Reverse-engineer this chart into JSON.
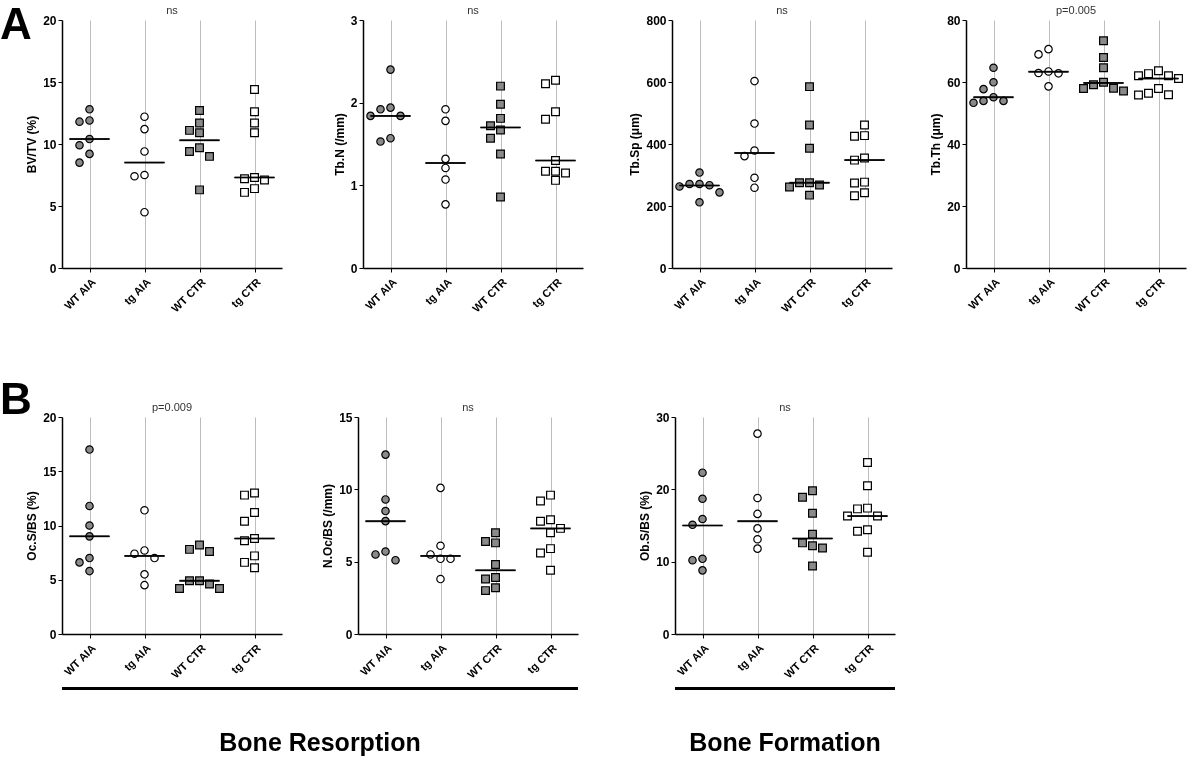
{
  "chart_data": [
    {
      "type": "scatter",
      "title": "A",
      "ylabel": "BV/TV (%)",
      "categories": [
        "WT AIA",
        "tg AIA",
        "WT CTR",
        "tg CTR"
      ],
      "ylim": [
        0,
        20
      ],
      "yticks": [
        0,
        5,
        10,
        15,
        20
      ],
      "grid": "x",
      "annotations": [
        "ns"
      ],
      "series": [
        {
          "color": "#8a8a8a",
          "marker": "circle",
          "x": [
            "WT AIA",
            "WT AIA",
            "WT AIA",
            "WT AIA",
            "WT AIA",
            "WT AIA",
            "WT AIA"
          ],
          "values": [
            12.8,
            11.8,
            11.9,
            10.4,
            9.9,
            9.2,
            8.5
          ]
        },
        {
          "color": "#ffffff",
          "marker": "circle",
          "x": [
            "tg AIA",
            "tg AIA",
            "tg AIA",
            "tg AIA",
            "tg AIA",
            "tg AIA"
          ],
          "values": [
            12.2,
            11.2,
            9.4,
            7.5,
            7.4,
            4.5
          ]
        },
        {
          "color": "#8a8a8a",
          "marker": "square",
          "x": [
            "WT CTR",
            "WT CTR",
            "WT CTR",
            "WT CTR",
            "WT CTR",
            "WT CTR",
            "WT CTR",
            "WT CTR"
          ],
          "values": [
            12.7,
            11.7,
            11.1,
            10.9,
            9.7,
            9.4,
            9.0,
            6.3
          ]
        },
        {
          "color": "#ffffff",
          "marker": "square",
          "x": [
            "tg CTR",
            "tg CTR",
            "tg CTR",
            "tg CTR",
            "tg CTR",
            "tg CTR",
            "tg CTR",
            "tg CTR",
            "tg CTR"
          ],
          "values": [
            14.4,
            12.6,
            11.7,
            10.9,
            7.3,
            7.2,
            7.1,
            6.4,
            6.1
          ]
        },
        {
          "type": "box",
          "color": "#000000",
          "boxes": [
            {
              "low": 10.4,
              "q1": 10.4,
              "median": 10.4,
              "q3": 10.4,
              "high": 10.4
            },
            {
              "low": 8.5,
              "q1": 8.5,
              "median": 8.5,
              "q3": 8.5,
              "high": 8.5
            },
            {
              "low": 10.3,
              "q1": 10.3,
              "median": 10.3,
              "q3": 10.3,
              "high": 10.3
            },
            {
              "low": 7.3,
              "q1": 7.3,
              "median": 7.3,
              "q3": 7.3,
              "high": 7.3
            }
          ]
        }
      ]
    },
    {
      "type": "scatter",
      "ylabel": "Tb.N (/mm)",
      "categories": [
        "WT AIA",
        "tg AIA",
        "WT CTR",
        "tg CTR"
      ],
      "ylim": [
        0,
        3
      ],
      "yticks": [
        0,
        1,
        2,
        3
      ],
      "grid": "x",
      "annotations": [
        "ns"
      ],
      "series": [
        {
          "color": "#8a8a8a",
          "marker": "circle",
          "x": [
            "WT AIA",
            "WT AIA",
            "WT AIA",
            "WT AIA",
            "WT AIA",
            "WT AIA",
            "WT AIA"
          ],
          "values": [
            2.4,
            1.92,
            1.94,
            1.84,
            1.84,
            1.57,
            1.53
          ]
        },
        {
          "color": "#ffffff",
          "marker": "circle",
          "x": [
            "tg AIA",
            "tg AIA",
            "tg AIA",
            "tg AIA",
            "tg AIA",
            "tg AIA"
          ],
          "values": [
            1.92,
            1.78,
            1.32,
            1.21,
            1.07,
            0.77
          ]
        },
        {
          "color": "#8a8a8a",
          "marker": "square",
          "x": [
            "WT CTR",
            "WT CTR",
            "WT CTR",
            "WT CTR",
            "WT CTR",
            "WT CTR",
            "WT CTR",
            "WT CTR"
          ],
          "values": [
            2.2,
            1.98,
            1.81,
            1.72,
            1.67,
            1.57,
            1.38,
            0.86
          ]
        },
        {
          "color": "#ffffff",
          "marker": "square",
          "x": [
            "tg CTR",
            "tg CTR",
            "tg CTR",
            "tg CTR",
            "tg CTR",
            "tg CTR",
            "tg CTR",
            "tg CTR",
            "tg CTR"
          ],
          "values": [
            2.27,
            2.23,
            1.89,
            1.8,
            1.3,
            1.17,
            1.17,
            1.15,
            1.06
          ]
        },
        {
          "type": "box",
          "color": "#000000",
          "boxes": [
            {
              "low": 1.84,
              "q1": 1.84,
              "median": 1.84,
              "q3": 1.84,
              "high": 1.84
            },
            {
              "low": 1.27,
              "q1": 1.27,
              "median": 1.27,
              "q3": 1.27,
              "high": 1.27
            },
            {
              "low": 1.7,
              "q1": 1.7,
              "median": 1.7,
              "q3": 1.7,
              "high": 1.7
            },
            {
              "low": 1.3,
              "q1": 1.3,
              "median": 1.3,
              "q3": 1.3,
              "high": 1.3
            }
          ]
        }
      ]
    },
    {
      "type": "scatter",
      "ylabel": "Tb.Sp (μm)",
      "categories": [
        "WT AIA",
        "tg AIA",
        "WT CTR",
        "tg CTR"
      ],
      "ylim": [
        0,
        800
      ],
      "yticks": [
        0,
        200,
        400,
        600,
        800
      ],
      "grid": "x",
      "annotations": [
        "ns"
      ],
      "series": [
        {
          "color": "#8a8a8a",
          "marker": "circle",
          "x": [
            "WT AIA",
            "WT AIA",
            "WT AIA",
            "WT AIA",
            "WT AIA",
            "WT AIA",
            "WT AIA"
          ],
          "values": [
            308,
            271,
            271,
            267,
            263,
            244,
            212
          ]
        },
        {
          "color": "#ffffff",
          "marker": "circle",
          "x": [
            "tg AIA",
            "tg AIA",
            "tg AIA",
            "tg AIA",
            "tg AIA",
            "tg AIA"
          ],
          "values": [
            603,
            466,
            379,
            361,
            291,
            259
          ]
        },
        {
          "color": "#8a8a8a",
          "marker": "square",
          "x": [
            "WT CTR",
            "WT CTR",
            "WT CTR",
            "WT CTR",
            "WT CTR",
            "WT CTR",
            "WT CTR",
            "WT CTR"
          ],
          "values": [
            585,
            461,
            386,
            275,
            275,
            268,
            261,
            235
          ]
        },
        {
          "color": "#ffffff",
          "marker": "square",
          "x": [
            "tg CTR",
            "tg CTR",
            "tg CTR",
            "tg CTR",
            "tg CTR",
            "tg CTR",
            "tg CTR",
            "tg CTR",
            "tg CTR"
          ],
          "values": [
            461,
            427,
            425,
            355,
            348,
            277,
            274,
            243,
            233
          ]
        },
        {
          "type": "box",
          "color": "#000000",
          "boxes": [
            {
              "low": 266,
              "q1": 266,
              "median": 266,
              "q3": 266,
              "high": 266
            },
            {
              "low": 371,
              "q1": 371,
              "median": 371,
              "q3": 371,
              "high": 371
            },
            {
              "low": 275,
              "q1": 275,
              "median": 275,
              "q3": 275,
              "high": 275
            },
            {
              "low": 348,
              "q1": 348,
              "median": 348,
              "q3": 348,
              "high": 348
            }
          ]
        }
      ]
    },
    {
      "type": "scatter",
      "ylabel": "Tb.Th (μm)",
      "categories": [
        "WT AIA",
        "tg AIA",
        "WT CTR",
        "tg CTR"
      ],
      "ylim": [
        0,
        80
      ],
      "yticks": [
        0,
        20,
        40,
        60,
        80
      ],
      "grid": "x",
      "annotations": [
        "p=0.005"
      ],
      "series": [
        {
          "color": "#8a8a8a",
          "marker": "circle",
          "x": [
            "WT AIA",
            "WT AIA",
            "WT AIA",
            "WT AIA",
            "WT AIA",
            "WT AIA",
            "WT AIA"
          ],
          "values": [
            64.6,
            59.9,
            57.7,
            55.1,
            53.9,
            53.9,
            53.3
          ]
        },
        {
          "color": "#ffffff",
          "marker": "circle",
          "x": [
            "tg AIA",
            "tg AIA",
            "tg AIA",
            "tg AIA",
            "tg AIA",
            "tg AIA"
          ],
          "values": [
            70.6,
            68.9,
            63.4,
            62.9,
            62.8,
            58.6
          ]
        },
        {
          "color": "#8a8a8a",
          "marker": "square",
          "x": [
            "WT CTR",
            "WT CTR",
            "WT CTR",
            "WT CTR",
            "WT CTR",
            "WT CTR",
            "WT CTR",
            "WT CTR"
          ],
          "values": [
            73.3,
            67.9,
            64.6,
            59.9,
            59.1,
            58.0,
            57.9,
            57.1
          ]
        },
        {
          "color": "#ffffff",
          "marker": "square",
          "x": [
            "tg CTR",
            "tg CTR",
            "tg CTR",
            "tg CTR",
            "tg CTR",
            "tg CTR",
            "tg CTR",
            "tg CTR",
            "tg CTR"
          ],
          "values": [
            63.6,
            62.7,
            62.0,
            62.0,
            61.1,
            57.9,
            56.4,
            55.9,
            55.8
          ]
        },
        {
          "type": "box",
          "color": "#000000",
          "boxes": [
            {
              "low": 55.1,
              "q1": 55.1,
              "median": 55.1,
              "q3": 55.1,
              "high": 55.1
            },
            {
              "low": 63.3,
              "q1": 63.3,
              "median": 63.3,
              "q3": 63.3,
              "high": 63.3
            },
            {
              "low": 59.7,
              "q1": 59.7,
              "median": 59.7,
              "q3": 59.7,
              "high": 59.7
            },
            {
              "low": 61.1,
              "q1": 61.1,
              "median": 61.1,
              "q3": 61.1,
              "high": 61.1
            }
          ]
        }
      ]
    },
    {
      "type": "scatter",
      "title": "B",
      "ylabel": "Oc.S/BS (%)",
      "categories": [
        "WT AIA",
        "tg AIA",
        "WT CTR",
        "tg CTR"
      ],
      "ylim": [
        0,
        20
      ],
      "yticks": [
        0,
        5,
        10,
        15,
        20
      ],
      "grid": "x",
      "annotations": [
        "p=0.009",
        "Bone Resorption"
      ],
      "series": [
        {
          "color": "#8a8a8a",
          "marker": "circle",
          "x": [
            "WT AIA",
            "WT AIA",
            "WT AIA",
            "WT AIA",
            "WT AIA",
            "WT AIA",
            "WT AIA"
          ],
          "values": [
            17.0,
            11.8,
            10.0,
            9.0,
            7.0,
            6.6,
            5.8
          ]
        },
        {
          "color": "#ffffff",
          "marker": "circle",
          "x": [
            "tg AIA",
            "tg AIA",
            "tg AIA",
            "tg AIA",
            "tg AIA",
            "tg AIA"
          ],
          "values": [
            11.4,
            7.7,
            7.4,
            7.0,
            5.5,
            4.5
          ]
        },
        {
          "color": "#8a8a8a",
          "marker": "square",
          "x": [
            "WT CTR",
            "WT CTR",
            "WT CTR",
            "WT CTR",
            "WT CTR",
            "WT CTR",
            "WT CTR",
            "WT CTR"
          ],
          "values": [
            8.2,
            7.8,
            7.6,
            4.9,
            4.9,
            4.6,
            4.2,
            4.2
          ]
        },
        {
          "color": "#ffffff",
          "marker": "square",
          "x": [
            "tg CTR",
            "tg CTR",
            "tg CTR",
            "tg CTR",
            "tg CTR",
            "tg CTR",
            "tg CTR",
            "tg CTR",
            "tg CTR"
          ],
          "values": [
            13.0,
            12.8,
            11.2,
            10.4,
            8.8,
            8.6,
            7.2,
            6.6,
            6.1
          ]
        },
        {
          "type": "box",
          "color": "#000000",
          "boxes": [
            {
              "low": 9.0,
              "q1": 9.0,
              "median": 9.0,
              "q3": 9.0,
              "high": 9.0
            },
            {
              "low": 7.2,
              "q1": 7.2,
              "median": 7.2,
              "q3": 7.2,
              "high": 7.2
            },
            {
              "low": 4.9,
              "q1": 4.9,
              "median": 4.9,
              "q3": 4.9,
              "high": 4.9
            },
            {
              "low": 8.8,
              "q1": 8.8,
              "median": 8.8,
              "q3": 8.8,
              "high": 8.8
            }
          ]
        }
      ]
    },
    {
      "type": "scatter",
      "ylabel": "N.Oc/BS (/mm)",
      "categories": [
        "WT AIA",
        "tg AIA",
        "WT CTR",
        "tg CTR"
      ],
      "ylim": [
        0,
        15
      ],
      "yticks": [
        0,
        5,
        10,
        15
      ],
      "grid": "x",
      "annotations": [
        "ns"
      ],
      "series": [
        {
          "color": "#8a8a8a",
          "marker": "circle",
          "x": [
            "WT AIA",
            "WT AIA",
            "WT AIA",
            "WT AIA",
            "WT AIA",
            "WT AIA",
            "WT AIA"
          ],
          "values": [
            12.4,
            9.3,
            8.5,
            7.8,
            5.7,
            5.5,
            5.1
          ]
        },
        {
          "color": "#ffffff",
          "marker": "circle",
          "x": [
            "tg AIA",
            "tg AIA",
            "tg AIA",
            "tg AIA",
            "tg AIA",
            "tg AIA"
          ],
          "values": [
            10.1,
            6.1,
            5.5,
            5.2,
            5.2,
            3.8
          ]
        },
        {
          "color": "#8a8a8a",
          "marker": "square",
          "x": [
            "WT CTR",
            "WT CTR",
            "WT CTR",
            "WT CTR",
            "WT CTR",
            "WT CTR",
            "WT CTR",
            "WT CTR"
          ],
          "values": [
            7.0,
            6.4,
            6.3,
            4.8,
            3.9,
            3.8,
            3.2,
            3.0
          ]
        },
        {
          "color": "#ffffff",
          "marker": "square",
          "x": [
            "tg CTR",
            "tg CTR",
            "tg CTR",
            "tg CTR",
            "tg CTR",
            "tg CTR",
            "tg CTR",
            "tg CTR",
            "tg CTR"
          ],
          "values": [
            9.6,
            9.2,
            7.9,
            7.8,
            7.3,
            7.0,
            5.9,
            5.6,
            4.4
          ]
        },
        {
          "type": "box",
          "color": "#000000",
          "boxes": [
            {
              "low": 7.8,
              "q1": 7.8,
              "median": 7.8,
              "q3": 7.8,
              "high": 7.8
            },
            {
              "low": 5.4,
              "q1": 5.4,
              "median": 5.4,
              "q3": 5.4,
              "high": 5.4
            },
            {
              "low": 4.4,
              "q1": 4.4,
              "median": 4.4,
              "q3": 4.4,
              "high": 4.4
            },
            {
              "low": 7.3,
              "q1": 7.3,
              "median": 7.3,
              "q3": 7.3,
              "high": 7.3
            }
          ]
        }
      ]
    },
    {
      "type": "scatter",
      "ylabel": "Ob.S/BS (%)",
      "categories": [
        "WT AIA",
        "tg AIA",
        "WT CTR",
        "tg CTR"
      ],
      "ylim": [
        0,
        30
      ],
      "yticks": [
        0,
        10,
        20,
        30
      ],
      "grid": "x",
      "annotations": [
        "ns",
        "Bone Formation"
      ],
      "series": [
        {
          "color": "#8a8a8a",
          "marker": "circle",
          "x": [
            "WT AIA",
            "WT AIA",
            "WT AIA",
            "WT AIA",
            "WT AIA",
            "WT AIA",
            "WT AIA"
          ],
          "values": [
            22.3,
            18.7,
            15.9,
            15.1,
            10.4,
            10.2,
            8.8
          ]
        },
        {
          "color": "#ffffff",
          "marker": "circle",
          "x": [
            "tg AIA",
            "tg AIA",
            "tg AIA",
            "tg AIA",
            "tg AIA",
            "tg AIA"
          ],
          "values": [
            27.7,
            18.8,
            16.6,
            14.6,
            13.1,
            11.8
          ]
        },
        {
          "color": "#8a8a8a",
          "marker": "square",
          "x": [
            "WT CTR",
            "WT CTR",
            "WT CTR",
            "WT CTR",
            "WT CTR",
            "WT CTR",
            "WT CTR",
            "WT CTR"
          ],
          "values": [
            19.8,
            18.9,
            16.7,
            13.8,
            12.6,
            12.2,
            11.9,
            9.4
          ]
        },
        {
          "color": "#ffffff",
          "marker": "square",
          "x": [
            "tg CTR",
            "tg CTR",
            "tg CTR",
            "tg CTR",
            "tg CTR",
            "tg CTR",
            "tg CTR",
            "tg CTR",
            "tg CTR"
          ],
          "values": [
            23.7,
            20.5,
            17.4,
            17.3,
            16.3,
            16.3,
            14.4,
            14.2,
            11.3
          ]
        },
        {
          "type": "box",
          "color": "#000000",
          "boxes": [
            {
              "low": 15.0,
              "q1": 15.0,
              "median": 15.0,
              "q3": 15.0,
              "high": 15.0
            },
            {
              "low": 15.6,
              "q1": 15.6,
              "median": 15.6,
              "q3": 15.6,
              "high": 15.6
            },
            {
              "low": 13.2,
              "q1": 13.2,
              "median": 13.2,
              "q3": 13.2,
              "high": 13.2
            },
            {
              "low": 16.3,
              "q1": 16.3,
              "median": 16.3,
              "q3": 16.3,
              "high": 16.3
            }
          ]
        }
      ]
    }
  ]
}
